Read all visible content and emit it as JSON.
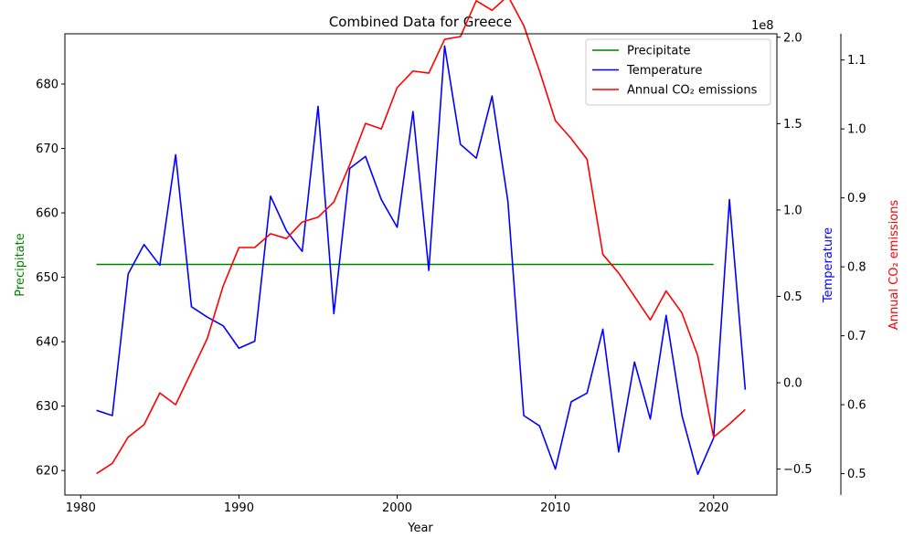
{
  "chart_data": {
    "type": "line",
    "title": "Combined Data for Greece",
    "xlabel": "Year",
    "xlim": [
      1979,
      2024
    ],
    "x_ticks": [
      1980,
      1990,
      2000,
      2010,
      2020
    ],
    "legend_position": "top-right",
    "axes": {
      "precipitate": {
        "label": "Precipitate",
        "color": "#008000",
        "ylim": [
          616.2,
          687.8
        ],
        "ticks": [
          620,
          630,
          640,
          650,
          660,
          670,
          680
        ]
      },
      "temperature": {
        "label": "Temperature",
        "color": "#0000ff",
        "ylim": [
          -0.65,
          2.02
        ],
        "ticks": [
          -0.5,
          0.0,
          0.5,
          1.0,
          1.5,
          2.0
        ],
        "tick_labels": [
          "−0.5",
          "0.0",
          "0.5",
          "1.0",
          "1.5",
          "2.0"
        ],
        "offset_text": "1e8"
      },
      "co2": {
        "label": "Annual CO₂ emissions",
        "color": "#ff0000",
        "ylim": [
          0.469,
          1.138
        ],
        "ticks": [
          0.5,
          0.6,
          0.7,
          0.8,
          0.9,
          1.0,
          1.1
        ],
        "tick_labels": [
          "0.5",
          "0.6",
          "0.7",
          "0.8",
          "0.9",
          "1.0",
          "1.1"
        ]
      }
    },
    "series": [
      {
        "name": "Precipitate",
        "axis": "precipitate",
        "color": "#008000",
        "x": [
          1981,
          2020
        ],
        "values": [
          652,
          652
        ]
      },
      {
        "name": "Temperature",
        "axis": "temperature",
        "color": "#0000ff",
        "x": [
          1981,
          1982,
          1983,
          1984,
          1985,
          1986,
          1987,
          1988,
          1989,
          1990,
          1991,
          1992,
          1993,
          1994,
          1995,
          1996,
          1997,
          1998,
          1999,
          2000,
          2001,
          2002,
          2003,
          2004,
          2005,
          2006,
          2007,
          2008,
          2009,
          2010,
          2011,
          2012,
          2013,
          2014,
          2015,
          2016,
          2017,
          2018,
          2019,
          2020,
          2021,
          2022
        ],
        "values": [
          -0.16,
          -0.19,
          0.63,
          0.8,
          0.68,
          1.32,
          0.44,
          0.38,
          0.33,
          0.2,
          0.24,
          1.08,
          0.88,
          0.76,
          1.6,
          0.4,
          1.24,
          1.31,
          1.06,
          0.9,
          1.57,
          0.65,
          1.95,
          1.38,
          1.3,
          1.66,
          1.05,
          -0.19,
          -0.25,
          -0.5,
          -0.11,
          -0.06,
          0.31,
          -0.4,
          0.12,
          -0.21,
          0.39,
          -0.19,
          -0.53,
          -0.32,
          1.06,
          -0.04
        ]
      },
      {
        "name": "Annual CO₂ emissions",
        "axis": "co2",
        "color": "#ff0000",
        "x": [
          1981,
          1982,
          1983,
          1984,
          1985,
          1986,
          1987,
          1988,
          1989,
          1990,
          1991,
          1992,
          1993,
          1994,
          1995,
          1996,
          1997,
          1998,
          1999,
          2000,
          2001,
          2002,
          2003,
          2004,
          2005,
          2006,
          2007,
          2008,
          2009,
          2010,
          2011,
          2012,
          2013,
          2014,
          2015,
          2016,
          2017,
          2018,
          2019,
          2020,
          2021,
          2022
        ],
        "values": [
          0.5,
          0.515,
          0.553,
          0.571,
          0.617,
          0.6,
          0.648,
          0.696,
          0.772,
          0.828,
          0.828,
          0.848,
          0.841,
          0.865,
          0.872,
          0.894,
          0.948,
          1.008,
          1.0,
          1.06,
          1.084,
          1.081,
          1.13,
          1.134,
          1.186,
          1.172,
          1.193,
          1.15,
          1.084,
          1.012,
          0.986,
          0.956,
          0.818,
          0.791,
          0.757,
          0.723,
          0.765,
          0.733,
          0.671,
          0.553,
          0.572,
          0.593
        ]
      }
    ]
  }
}
